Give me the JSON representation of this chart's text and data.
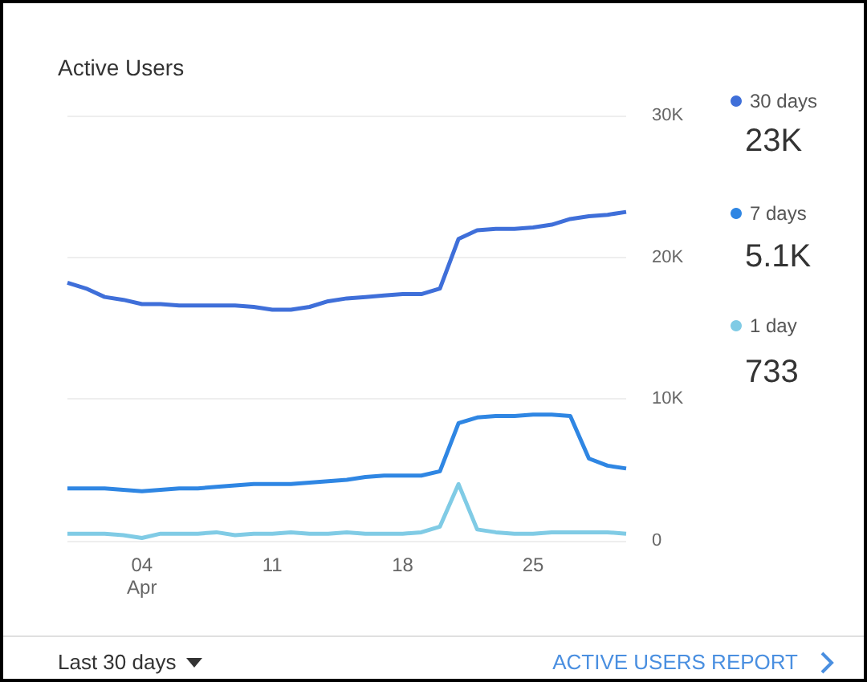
{
  "chart_data": {
    "type": "line",
    "title": "Active Users",
    "categories": [
      null,
      null,
      null,
      null,
      "04\nApr",
      null,
      null,
      null,
      null,
      null,
      null,
      "11",
      null,
      null,
      null,
      null,
      null,
      null,
      "18",
      null,
      null,
      null,
      null,
      null,
      null,
      "25",
      null,
      null,
      null,
      null,
      null
    ],
    "series": [
      {
        "name": "30 days",
        "color": "#3f6fd9",
        "values": [
          18200,
          17800,
          17200,
          17000,
          16700,
          16700,
          16600,
          16600,
          16600,
          16600,
          16500,
          16300,
          16300,
          16500,
          16900,
          17100,
          17200,
          17300,
          17400,
          17400,
          17800,
          21300,
          21900,
          22000,
          22000,
          22100,
          22300,
          22700,
          22900,
          23000,
          23200
        ]
      },
      {
        "name": "7 days",
        "color": "#2f86e3",
        "values": [
          3700,
          3700,
          3700,
          3600,
          3500,
          3600,
          3700,
          3700,
          3800,
          3900,
          4000,
          4000,
          4000,
          4100,
          4200,
          4300,
          4500,
          4600,
          4600,
          4600,
          4900,
          8300,
          8700,
          8800,
          8800,
          8900,
          8900,
          8800,
          5800,
          5300,
          5100
        ]
      },
      {
        "name": "1 day",
        "color": "#80cbe5",
        "values": [
          500,
          500,
          500,
          400,
          200,
          500,
          500,
          500,
          600,
          400,
          500,
          500,
          600,
          500,
          500,
          600,
          500,
          500,
          500,
          600,
          1000,
          4000,
          800,
          600,
          500,
          500,
          600,
          600,
          600,
          600,
          500
        ]
      }
    ],
    "ylim": [
      0,
      30000
    ],
    "yticks": [
      {
        "value": 0,
        "label": "0"
      },
      {
        "value": 10000,
        "label": "10K"
      },
      {
        "value": 20000,
        "label": "20K"
      },
      {
        "value": 30000,
        "label": "30K"
      }
    ],
    "grid": "y",
    "legend": "right",
    "marker": "none",
    "line_style": "solid",
    "annotations": [
      "23K",
      "5.1K",
      "733",
      "Last 30 days",
      "ACTIVE USERS REPORT"
    ]
  }
}
